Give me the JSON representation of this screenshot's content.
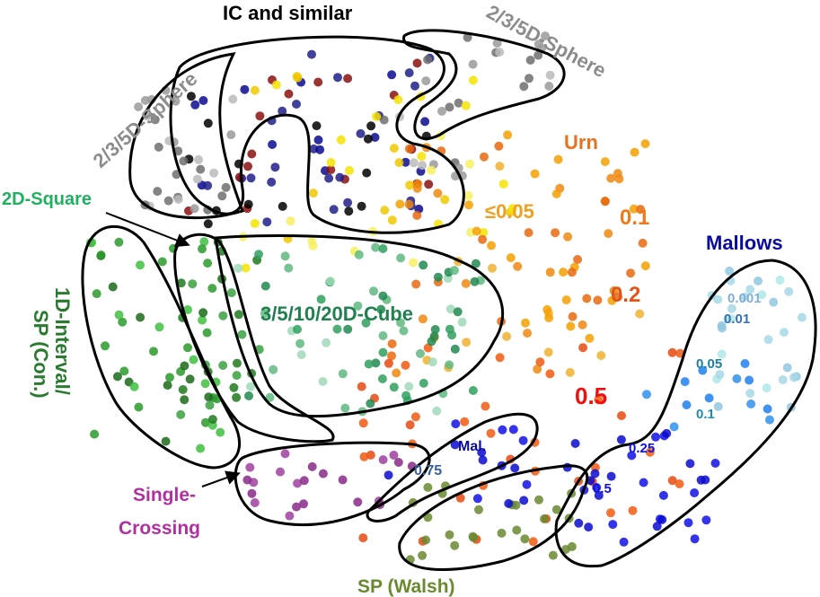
{
  "labels": {
    "ic": {
      "text": "IC and similar",
      "color": "#000000"
    },
    "sphere_left": {
      "text": "2/3/5D-Sphere",
      "color": "#8c8c8c"
    },
    "sphere_right": {
      "text": "2/3/5D-Sphere",
      "color": "#8c8c8c"
    },
    "urn": {
      "text": "Urn",
      "color": "#e8731e"
    },
    "urn_005": {
      "text": "≤0.05",
      "color": "#f0a020"
    },
    "urn_01": {
      "text": "0.1",
      "color": "#ec7a1c"
    },
    "urn_02": {
      "text": "0.2",
      "color": "#e0561a"
    },
    "urn_05": {
      "text": "0.5",
      "color": "#ee1010"
    },
    "mallows": {
      "text": "Mallows",
      "color": "#0a0aa0"
    },
    "mal_0001": {
      "text": "0.001",
      "color": "#7fb0d8"
    },
    "mal_001": {
      "text": "0.01",
      "color": "#3a6fb0"
    },
    "mal_005": {
      "text": "0.05",
      "color": "#1a7fa0"
    },
    "mal_01": {
      "text": "0.1",
      "color": "#1a8fb0"
    },
    "mal_025": {
      "text": "0.25",
      "color": "#1010e0"
    },
    "mal_05": {
      "text": "0.5",
      "color": "#1010e0"
    },
    "mal_short": {
      "text": "Mal.",
      "color": "#0a0aa0"
    },
    "mal_075": {
      "text": "0.75",
      "color": "#3a60a0"
    },
    "square": {
      "text": "2D-Square",
      "color": "#20b060"
    },
    "cube": {
      "text": "3/5/10/20D-Cube",
      "color": "#208050"
    },
    "interval_1": {
      "text": "1D-Interval/",
      "color": "#2a7a30"
    },
    "interval_2": {
      "text": "SP (Con.)",
      "color": "#2a7a30"
    },
    "single_1": {
      "text": "Single-",
      "color": "#b030a0"
    },
    "single_2": {
      "text": "Crossing",
      "color": "#b030a0"
    },
    "walsh": {
      "text": "SP (Walsh)",
      "color": "#6a8a30"
    }
  },
  "clusters": [
    {
      "name": "ic",
      "colors": [
        "#000000",
        "#8b1010",
        "#0a0a90",
        "#20208a"
      ]
    },
    {
      "name": "sphere",
      "colors": [
        "#9a9a9a",
        "#bbbbbb",
        "#6e6e6e"
      ]
    },
    {
      "name": "urn-low",
      "colors": [
        "#f5e400",
        "#f0c800",
        "#f8f060"
      ]
    },
    {
      "name": "urn",
      "colors": [
        "#f5a000",
        "#f08a10",
        "#e86a10",
        "#f0b030"
      ]
    },
    {
      "name": "urn-high",
      "colors": [
        "#f05a10",
        "#e84a10"
      ]
    },
    {
      "name": "interval",
      "colors": [
        "#1a6a1a",
        "#2a9a2a",
        "#40c040"
      ]
    },
    {
      "name": "square",
      "colors": [
        "#207a20",
        "#3aa040"
      ]
    },
    {
      "name": "cube",
      "colors": [
        "#30a060",
        "#60b880",
        "#a0d8b8",
        "#208a50"
      ]
    },
    {
      "name": "single-crossing",
      "colors": [
        "#8a2a8a",
        "#a040a0"
      ]
    },
    {
      "name": "walsh",
      "colors": [
        "#6a8a30"
      ]
    },
    {
      "name": "mallows-low",
      "colors": [
        "#a8d8e8",
        "#b0e8e8",
        "#90c8e0"
      ]
    },
    {
      "name": "mallows-mid",
      "colors": [
        "#3090f0",
        "#2080f0"
      ]
    },
    {
      "name": "mallows-high",
      "colors": [
        "#1010e8",
        "#0a0ad0"
      ]
    }
  ]
}
